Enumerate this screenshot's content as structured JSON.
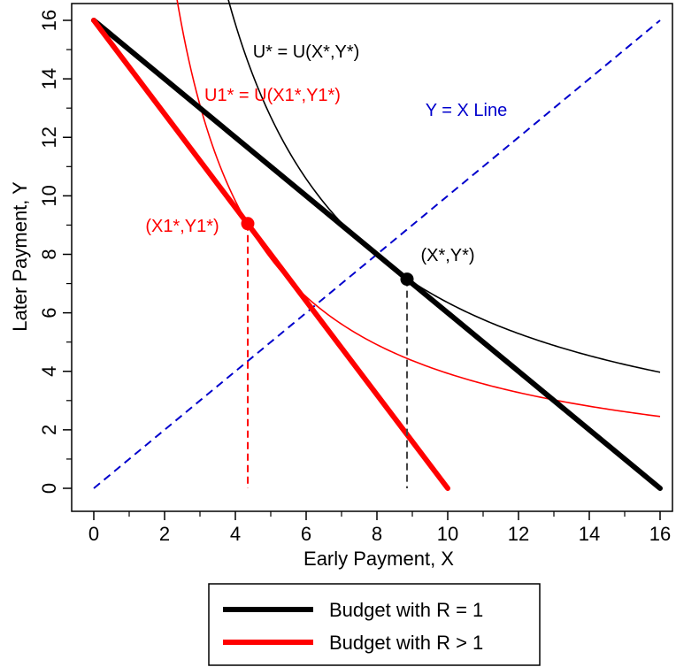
{
  "chart_data": {
    "type": "line",
    "xlabel": "Early Payment, X",
    "ylabel": "Later Payment, Y",
    "xlim": [
      0,
      16
    ],
    "ylim": [
      0,
      16
    ],
    "x_ticks": [
      0,
      2,
      4,
      6,
      8,
      10,
      12,
      14,
      16
    ],
    "y_ticks": [
      0,
      2,
      4,
      6,
      8,
      10,
      12,
      14,
      16
    ],
    "grid": false,
    "legend_position": "bottom",
    "series": [
      {
        "name": "Budget with R = 1",
        "color": "#000000",
        "points": [
          [
            0,
            16
          ],
          [
            16,
            0
          ]
        ]
      },
      {
        "name": "Budget with R > 1",
        "color": "#ff0000",
        "points": [
          [
            0,
            16
          ],
          [
            10,
            0
          ]
        ]
      }
    ],
    "reference_line": {
      "label": "Y = X Line",
      "color": "#0000cc",
      "points": [
        [
          0,
          0
        ],
        [
          16,
          16
        ]
      ]
    },
    "indifference_curves": [
      {
        "label": "U* = U(X*,Y*)",
        "color": "#000000",
        "k": 63.5,
        "x_range": [
          3.2,
          16
        ]
      },
      {
        "label": "U1* = U(X1*,Y1*)",
        "color": "#ff0000",
        "k": 39.3,
        "x_range": [
          1.45,
          16
        ]
      }
    ],
    "points": [
      {
        "label": "(X*,Y*)",
        "x": 8.85,
        "y": 7.15,
        "color": "#000000"
      },
      {
        "label": "(X1*,Y1*)",
        "x": 4.35,
        "y": 9.05,
        "color": "#ff0000"
      }
    ]
  },
  "legend": {
    "items": [
      {
        "label": "Budget with R = 1",
        "color": "#000000"
      },
      {
        "label": "Budget with R > 1",
        "color": "#ff0000"
      }
    ]
  }
}
